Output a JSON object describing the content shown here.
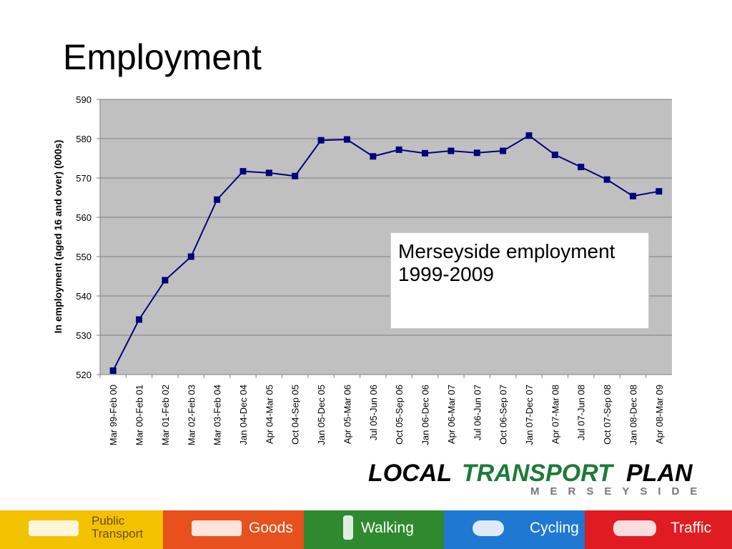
{
  "title": "Employment",
  "chart_data": {
    "type": "line",
    "ylabel": "In employment (aged 16 and over) (000s)",
    "annotation": "Merseyside employment 1999-2009",
    "categories": [
      "Mar 99-Feb 00",
      "Mar 00-Feb 01",
      "Mar 01-Feb 02",
      "Mar 02-Feb 03",
      "Mar 03-Feb 04",
      "Jan 04-Dec 04",
      "Apr 04-Mar 05",
      "Oct 04-Sep 05",
      "Jan 05-Dec 05",
      "Apr 05-Mar 06",
      "Jul 05-Jun 06",
      "Oct 05-Sep 06",
      "Jan 06-Dec 06",
      "Apr 06-Mar 07",
      "Jul 06-Jun 07",
      "Oct 06-Sep 07",
      "Jan 07-Dec 07",
      "Apr 07-Mar 08",
      "Jul 07-Jun 08",
      "Oct 07-Sep 08",
      "Jan 08-Dec 08",
      "Apr 08-Mar 09"
    ],
    "series": [
      {
        "color": "#000080",
        "values": [
          521,
          534,
          544,
          550,
          564.5,
          571.7,
          571.3,
          570.5,
          579.6,
          579.8,
          575.5,
          577.2,
          576.3,
          576.9,
          576.4,
          576.9,
          580.8,
          575.9,
          572.8,
          569.6,
          565.4,
          566.6
        ]
      }
    ],
    "ylim": [
      520,
      590
    ],
    "yticks": [
      520,
      530,
      540,
      550,
      560,
      570,
      580,
      590
    ],
    "grid": true
  },
  "logo": {
    "words": [
      "LOCAL",
      "TRANSPORT",
      "PLAN"
    ],
    "subtitle": "MERSEYSIDE"
  },
  "nav": [
    {
      "lines": [
        "Public",
        "Transport"
      ],
      "color": "#f2c200"
    },
    {
      "lines": [
        "Goods"
      ],
      "color": "#e8501e"
    },
    {
      "lines": [
        "Walking"
      ],
      "color": "#2f8a2f"
    },
    {
      "lines": [
        "Cycling"
      ],
      "color": "#1f78d1"
    },
    {
      "lines": [
        "Traffic"
      ],
      "color": "#e11b22"
    }
  ]
}
